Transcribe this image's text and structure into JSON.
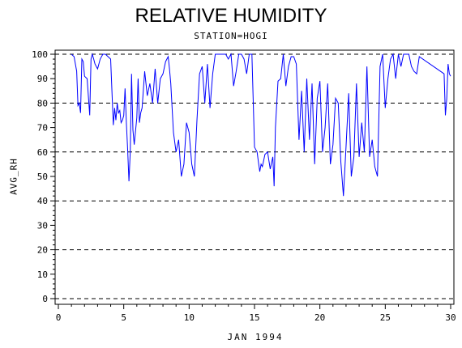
{
  "chart_data": {
    "type": "line",
    "title": "RELATIVE HUMIDITY",
    "subtitle": "STATION=HOGI",
    "xlabel": "JAN 1994",
    "ylabel": "AVG_RH",
    "xlim": [
      0,
      30
    ],
    "ylim": [
      0,
      100
    ],
    "x_ticks": [
      0,
      5,
      10,
      15,
      20,
      25,
      30
    ],
    "y_ticks": [
      0,
      10,
      20,
      30,
      40,
      50,
      60,
      70,
      80,
      90,
      100
    ],
    "reference_lines": [
      0,
      20,
      40,
      60,
      80,
      100
    ],
    "grid": false,
    "series_color": "#0000ff",
    "series": [
      {
        "x": [
          1.0,
          1.2,
          1.4,
          1.5,
          1.6,
          1.7,
          1.8,
          1.9,
          2.0,
          2.2,
          2.4,
          2.5,
          2.6,
          2.7,
          2.8,
          3.0,
          3.2,
          3.4,
          3.5,
          3.6,
          3.8,
          4.0,
          4.2,
          4.3,
          4.4,
          4.5,
          4.6,
          4.7,
          4.8,
          4.9,
          5.0,
          5.1,
          5.2,
          5.3,
          5.4,
          5.5,
          5.6,
          5.7,
          5.8,
          6.0,
          6.1,
          6.2,
          6.3,
          6.4,
          6.6,
          6.8,
          7.0,
          7.2,
          7.4,
          7.6,
          7.8,
          8.0,
          8.2,
          8.4,
          8.5,
          8.6,
          8.8,
          9.0,
          9.2,
          9.4,
          9.6,
          9.8,
          10.0,
          10.2,
          10.4,
          10.6,
          10.8,
          11.0,
          11.2,
          11.4,
          11.6,
          11.8,
          12.0,
          12.2,
          12.4,
          12.6,
          12.8,
          13.0,
          13.2,
          13.4,
          13.6,
          13.8,
          14.0,
          14.2,
          14.4,
          14.6,
          14.8,
          15.0,
          15.1,
          15.2,
          15.3,
          15.4,
          15.5,
          15.6,
          15.8,
          16.0,
          16.2,
          16.4,
          16.5,
          16.6,
          16.8,
          17.0,
          17.2,
          17.4,
          17.6,
          17.8,
          18.0,
          18.2,
          18.4,
          18.6,
          18.8,
          19.0,
          19.2,
          19.4,
          19.6,
          19.8,
          20.0,
          20.2,
          20.4,
          20.6,
          20.8,
          21.0,
          21.2,
          21.4,
          21.6,
          21.8,
          22.0,
          22.2,
          22.4,
          22.6,
          22.8,
          23.0,
          23.2,
          23.4,
          23.6,
          23.8,
          24.0,
          24.2,
          24.4,
          24.6,
          24.8,
          25.0,
          25.2,
          25.4,
          25.6,
          25.8,
          26.0,
          26.2,
          26.4,
          26.6,
          26.8,
          27.0,
          27.2,
          27.4,
          27.6,
          29.5,
          29.6,
          29.7,
          29.8,
          29.9,
          30.0
        ],
        "values": [
          100,
          99,
          93,
          79,
          80,
          76,
          98,
          97,
          91,
          90,
          75,
          98,
          100,
          98,
          96,
          94,
          98,
          100,
          100,
          100,
          99,
          98,
          71,
          78,
          73,
          80,
          76,
          77,
          72,
          73,
          75,
          86,
          72,
          61,
          48,
          60,
          92,
          69,
          63,
          74,
          90,
          72,
          76,
          78,
          93,
          83,
          88,
          80,
          94,
          80,
          90,
          92,
          97,
          99,
          94,
          88,
          68,
          60,
          65,
          50,
          55,
          72,
          68,
          55,
          50,
          73,
          92,
          95,
          80,
          96,
          78,
          92,
          100,
          100,
          100,
          100,
          100,
          98,
          100,
          87,
          93,
          100,
          100,
          98,
          92,
          100,
          100,
          62,
          61,
          60,
          56,
          52,
          55,
          54,
          59,
          60,
          53,
          58,
          46,
          70,
          89,
          90,
          100,
          87,
          95,
          99,
          99,
          96,
          65,
          85,
          60,
          90,
          65,
          88,
          55,
          82,
          89,
          60,
          70,
          88,
          55,
          63,
          82,
          80,
          56,
          42,
          62,
          84,
          50,
          58,
          88,
          58,
          72,
          60,
          95,
          58,
          65,
          54,
          50,
          95,
          100,
          78,
          90,
          98,
          100,
          90,
          100,
          95,
          100,
          100,
          100,
          95,
          93,
          92,
          99,
          92,
          75,
          82,
          96,
          92,
          91
        ]
      }
    ]
  }
}
